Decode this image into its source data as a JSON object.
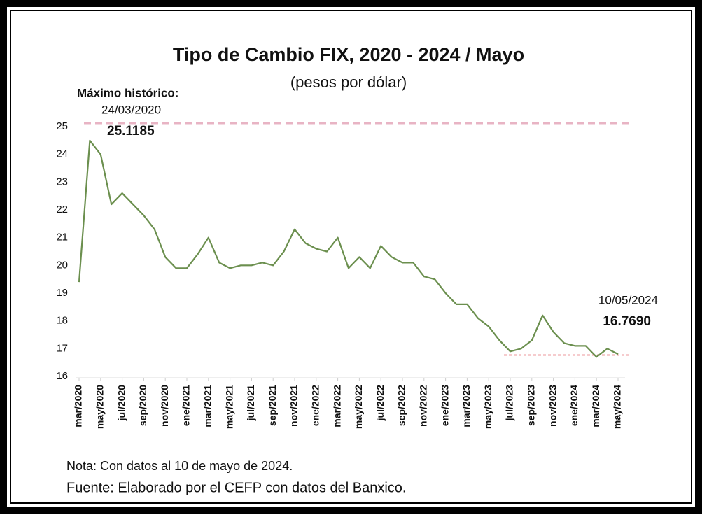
{
  "chart_data": {
    "type": "line",
    "title": "Tipo de Cambio FIX, 2020 - 2024 / Mayo",
    "subtitle": "(pesos por dólar)",
    "annotations": [
      {
        "label": "Máximo histórico:",
        "date": "24/03/2020",
        "value": 25.1185,
        "value_label": "25.1185",
        "color": "#e8b4c4"
      },
      {
        "date": "10/05/2024",
        "value": 16.769,
        "value_label": "16.7690",
        "color": "#d9363e"
      }
    ],
    "notes": [
      "Nota: Con datos al 10 de mayo de 2024.",
      "Fuente: Elaborado por el CEFP con datos del Banxico."
    ],
    "x": [
      "2020-03",
      "2020-04",
      "2020-05",
      "2020-06",
      "2020-07",
      "2020-08",
      "2020-09",
      "2020-10",
      "2020-11",
      "2020-12",
      "2021-01",
      "2021-02",
      "2021-03",
      "2021-04",
      "2021-05",
      "2021-06",
      "2021-07",
      "2021-08",
      "2021-09",
      "2021-10",
      "2021-11",
      "2021-12",
      "2022-01",
      "2022-02",
      "2022-03",
      "2022-04",
      "2022-05",
      "2022-06",
      "2022-07",
      "2022-08",
      "2022-09",
      "2022-10",
      "2022-11",
      "2022-12",
      "2023-01",
      "2023-02",
      "2023-03",
      "2023-04",
      "2023-05",
      "2023-06",
      "2023-07",
      "2023-08",
      "2023-09",
      "2023-10",
      "2023-11",
      "2023-12",
      "2024-01",
      "2024-02",
      "2024-03",
      "2024-04",
      "2024-05"
    ],
    "series": [
      {
        "color": "#6b8f4e",
        "values": [
          19.4,
          24.5,
          24.0,
          22.2,
          22.6,
          22.2,
          21.8,
          21.3,
          20.3,
          19.9,
          19.9,
          20.4,
          21.0,
          20.1,
          19.9,
          20.0,
          20.0,
          20.1,
          20.0,
          20.5,
          21.3,
          20.8,
          20.6,
          20.5,
          21.0,
          19.9,
          20.3,
          19.9,
          20.7,
          20.3,
          20.1,
          20.1,
          19.6,
          19.5,
          19.0,
          18.6,
          18.6,
          18.1,
          17.8,
          17.3,
          16.9,
          17.0,
          17.3,
          18.2,
          17.6,
          17.2,
          17.1,
          17.1,
          16.7,
          17.0,
          16.8
        ]
      }
    ],
    "xticks": [
      {
        "value": "2020-03",
        "label": "mar/2020"
      },
      {
        "value": "2020-05",
        "label": "may/2020"
      },
      {
        "value": "2020-07",
        "label": "jul/2020"
      },
      {
        "value": "2020-09",
        "label": "sep/2020"
      },
      {
        "value": "2020-11",
        "label": "nov/2020"
      },
      {
        "value": "2021-01",
        "label": "ene/2021"
      },
      {
        "value": "2021-03",
        "label": "mar/2021"
      },
      {
        "value": "2021-05",
        "label": "may/2021"
      },
      {
        "value": "2021-07",
        "label": "jul/2021"
      },
      {
        "value": "2021-09",
        "label": "sep/2021"
      },
      {
        "value": "2021-11",
        "label": "nov/2021"
      },
      {
        "value": "2022-01",
        "label": "ene/2022"
      },
      {
        "value": "2022-03",
        "label": "mar/2022"
      },
      {
        "value": "2022-05",
        "label": "may/2022"
      },
      {
        "value": "2022-07",
        "label": "jul/2022"
      },
      {
        "value": "2022-09",
        "label": "sep/2022"
      },
      {
        "value": "2022-11",
        "label": "nov/2022"
      },
      {
        "value": "2023-01",
        "label": "ene/2023"
      },
      {
        "value": "2023-03",
        "label": "mar/2023"
      },
      {
        "value": "2023-05",
        "label": "may/2023"
      },
      {
        "value": "2023-07",
        "label": "jul/2023"
      },
      {
        "value": "2023-09",
        "label": "sep/2023"
      },
      {
        "value": "2023-11",
        "label": "nov/2023"
      },
      {
        "value": "2024-01",
        "label": "ene/2024"
      },
      {
        "value": "2024-03",
        "label": "mar/2024"
      },
      {
        "value": "2024-05",
        "label": "may/2024"
      }
    ],
    "ylim": [
      16,
      25
    ],
    "yticks": [
      16,
      17,
      18,
      19,
      20,
      21,
      22,
      23,
      24,
      25
    ],
    "grid": false
  }
}
